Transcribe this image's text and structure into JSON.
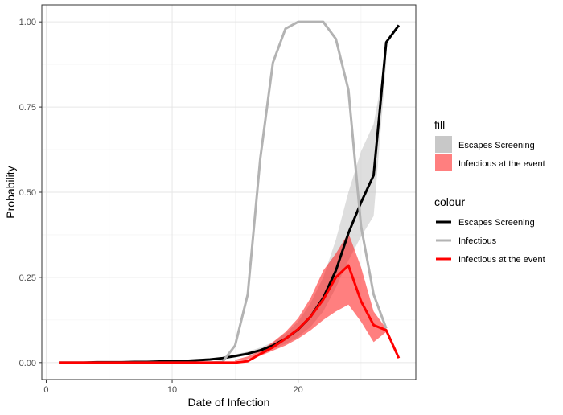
{
  "chart_data": {
    "type": "line",
    "xlabel": "Date of Infection",
    "ylabel": "Probability",
    "xlim": [
      -0.35,
      29.35
    ],
    "ylim": [
      -0.05,
      1.05
    ],
    "x_ticks": [
      0,
      10,
      20
    ],
    "x_tick_labels": [
      "0",
      "10",
      "20"
    ],
    "y_ticks": [
      0,
      0.25,
      0.5,
      0.75,
      1.0
    ],
    "y_tick_labels": [
      "0.00",
      "0.25",
      "0.50",
      "0.75",
      "1.00"
    ],
    "grid": true,
    "legend_position": "right",
    "ribbons": [
      {
        "name": "Escapes Screening",
        "color": "#bebebe",
        "opacity": 0.5,
        "x": [
          15,
          16,
          17,
          18,
          19,
          20,
          21,
          22,
          23,
          24,
          25,
          26,
          27
        ],
        "lower": [
          0.016,
          0.021,
          0.029,
          0.04,
          0.055,
          0.075,
          0.105,
          0.15,
          0.22,
          0.3,
          0.37,
          0.43,
          0.88
        ],
        "upper": [
          0.024,
          0.032,
          0.044,
          0.06,
          0.085,
          0.12,
          0.175,
          0.25,
          0.36,
          0.5,
          0.62,
          0.7,
          0.9
        ]
      },
      {
        "name": "Infectious at the event",
        "color": "#ff0000",
        "opacity": 0.5,
        "x": [
          15,
          16,
          17,
          18,
          19,
          20,
          21,
          22,
          23,
          24,
          25,
          26,
          27
        ],
        "lower": [
          0.004,
          0.01,
          0.02,
          0.035,
          0.05,
          0.07,
          0.095,
          0.125,
          0.15,
          0.17,
          0.12,
          0.06,
          0.09
        ],
        "upper": [
          0.008,
          0.018,
          0.035,
          0.06,
          0.09,
          0.13,
          0.19,
          0.27,
          0.32,
          0.38,
          0.28,
          0.15,
          0.1
        ]
      }
    ],
    "series": [
      {
        "name": "Escapes Screening",
        "color": "#000000",
        "x": [
          1,
          2,
          3,
          4,
          5,
          6,
          7,
          8,
          9,
          10,
          11,
          12,
          13,
          14,
          15,
          16,
          17,
          18,
          19,
          20,
          21,
          22,
          23,
          24,
          25,
          26,
          27,
          28
        ],
        "values": [
          0,
          0,
          0,
          0.001,
          0.001,
          0.001,
          0.002,
          0.002,
          0.003,
          0.004,
          0.005,
          0.007,
          0.009,
          0.013,
          0.019,
          0.026,
          0.036,
          0.05,
          0.07,
          0.097,
          0.135,
          0.19,
          0.27,
          0.38,
          0.47,
          0.55,
          0.94,
          0.99
        ]
      },
      {
        "name": "Infectious",
        "color": "#b3b3b3",
        "x": [
          1,
          2,
          3,
          4,
          5,
          6,
          7,
          8,
          9,
          10,
          11,
          12,
          13,
          14,
          15,
          16,
          17,
          18,
          19,
          20,
          21,
          22,
          23,
          24,
          25,
          26,
          27
        ],
        "values": [
          0,
          0,
          0,
          0,
          0,
          0,
          0,
          0,
          0,
          0,
          0,
          0,
          0,
          0.002,
          0.05,
          0.2,
          0.6,
          0.88,
          0.98,
          1.0,
          1.0,
          1.0,
          0.95,
          0.8,
          0.4,
          0.2,
          0.1
        ]
      },
      {
        "name": "Infectious at the event",
        "color": "#ff0000",
        "x": [
          1,
          2,
          3,
          4,
          5,
          6,
          7,
          8,
          9,
          10,
          11,
          12,
          13,
          14,
          15,
          16,
          17,
          18,
          19,
          20,
          21,
          22,
          23,
          24,
          25,
          26,
          27,
          28
        ],
        "values": [
          0,
          0,
          0,
          0,
          0,
          0,
          0,
          0,
          0,
          0,
          0,
          0,
          0,
          0,
          0,
          0.004,
          0.025,
          0.045,
          0.07,
          0.098,
          0.135,
          0.185,
          0.25,
          0.285,
          0.18,
          0.11,
          0.095,
          0.013
        ]
      }
    ],
    "legend_fill": {
      "title": "fill",
      "items": [
        {
          "label": "Escapes Screening",
          "color": "#bebebe",
          "opacity": 0.85
        },
        {
          "label": "Infectious at the event",
          "color": "#ff0000",
          "opacity": 0.5
        }
      ]
    },
    "legend_colour": {
      "title": "colour",
      "items": [
        {
          "label": "Escapes Screening",
          "color": "#000000"
        },
        {
          "label": "Infectious",
          "color": "#b3b3b3"
        },
        {
          "label": "Infectious at the event",
          "color": "#ff0000"
        }
      ]
    }
  }
}
